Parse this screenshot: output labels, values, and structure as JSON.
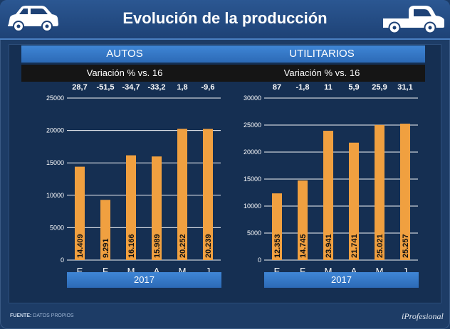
{
  "title": "Evolución de la producción",
  "chart_data": [
    {
      "type": "bar",
      "title": "AUTOS",
      "subtitle": "Variación % vs. 16",
      "categories": [
        "E",
        "F",
        "M",
        "A",
        "M",
        "J"
      ],
      "values": [
        14409,
        9291,
        16166,
        15989,
        20252,
        20239
      ],
      "value_labels": [
        "14.409",
        "9.291",
        "16.166",
        "15.989",
        "20.252",
        "20.239"
      ],
      "variation": [
        "28,7",
        "-51,5",
        "-34,7",
        "-33,2",
        "1,8",
        "-9,6"
      ],
      "yticks": [
        0,
        5000,
        10000,
        15000,
        20000,
        25000
      ],
      "ylim": [
        0,
        25000
      ],
      "xlabel": "2017",
      "color": "#f0a040"
    },
    {
      "type": "bar",
      "title": "UTILITARIOS",
      "subtitle": "Variación % vs. 16",
      "categories": [
        "E",
        "F",
        "M",
        "A",
        "M",
        "J"
      ],
      "values": [
        12353,
        14745,
        23941,
        21741,
        25021,
        25257
      ],
      "value_labels": [
        "12.353",
        "14.745",
        "23.941",
        "21.741",
        "25.021",
        "25.257"
      ],
      "variation": [
        "87",
        "-1,8",
        "11",
        "5,9",
        "25,9",
        "31,1"
      ],
      "yticks": [
        0,
        5000,
        10000,
        15000,
        20000,
        25000,
        30000
      ],
      "ylim": [
        0,
        30000
      ],
      "xlabel": "2017",
      "color": "#f0a040"
    }
  ],
  "footer": {
    "source_label": "FUENTE:",
    "source_text": "DATOS PROPIOS",
    "brand": "iProfesional"
  },
  "icons": {
    "left": "car-icon",
    "right": "pickup-truck-icon"
  }
}
